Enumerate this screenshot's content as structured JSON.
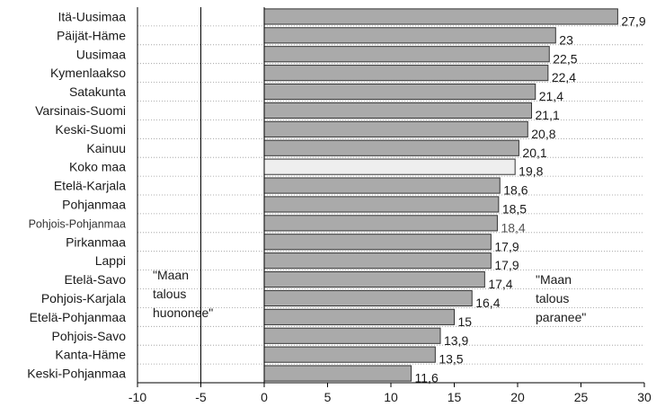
{
  "chart_data": {
    "type": "bar",
    "orientation": "horizontal",
    "categories": [
      "Itä-Uusimaa",
      "Päijät-Häme",
      "Uusimaa",
      "Kymenlaakso",
      "Satakunta",
      "Varsinais-Suomi",
      "Keski-Suomi",
      "Kainuu",
      "Koko maa",
      "Etelä-Karjala",
      "Pohjanmaa",
      "Pohjois-Pohjanmaa",
      "Pirkanmaa",
      "Lappi",
      "Etelä-Savo",
      "Pohjois-Karjala",
      "Etelä-Pohjanmaa",
      "Pohjois-Savo",
      "Kanta-Häme",
      "Keski-Pohjanmaa"
    ],
    "values": [
      27.9,
      23,
      22.5,
      22.4,
      21.4,
      21.1,
      20.8,
      20.1,
      19.8,
      18.6,
      18.5,
      18.4,
      17.9,
      17.9,
      17.4,
      16.4,
      15,
      13.9,
      13.5,
      11.6
    ],
    "value_labels": [
      "27,9",
      "23",
      "22,5",
      "22,4",
      "21,4",
      "21,1",
      "20,8",
      "20,1",
      "19,8",
      "18,6",
      "18,5",
      "18,4",
      "17,9",
      "17,9",
      "17,4",
      "16,4",
      "15",
      "13,9",
      "13,5",
      "11,6"
    ],
    "highlight_category": "Koko maa",
    "xlim": [
      -10,
      30
    ],
    "x_ticks": [
      -10,
      -5,
      0,
      5,
      10,
      15,
      20,
      25,
      30
    ],
    "x_tick_labels": [
      "-10",
      "-5",
      "0",
      "5",
      "10",
      "15",
      "20",
      "25",
      "30"
    ],
    "title": "",
    "xlabel": "",
    "ylabel": "",
    "grid": "horizontal dotted",
    "annotations": {
      "left": [
        "\"Maan",
        "talous",
        "huononee\""
      ],
      "right": [
        "\"Maan",
        "talous",
        "paranee\""
      ]
    },
    "colors": {
      "bar_fill": "#aaaaaa",
      "bar_stroke": "#333333",
      "highlight_fill": "#eeeeee",
      "axis": "#000000",
      "grid": "#999999"
    }
  }
}
